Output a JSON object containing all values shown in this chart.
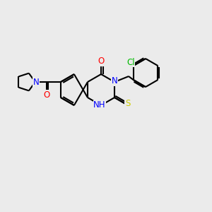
{
  "bg_color": "#ebebeb",
  "bond_color": "#000000",
  "bond_width": 1.5,
  "atom_colors": {
    "N": "#0000ff",
    "O": "#ff0000",
    "S": "#cccc00",
    "Cl": "#00bb00",
    "C": "#000000"
  },
  "font_size": 8.5,
  "fig_size": [
    3.0,
    3.0
  ],
  "dpi": 100
}
